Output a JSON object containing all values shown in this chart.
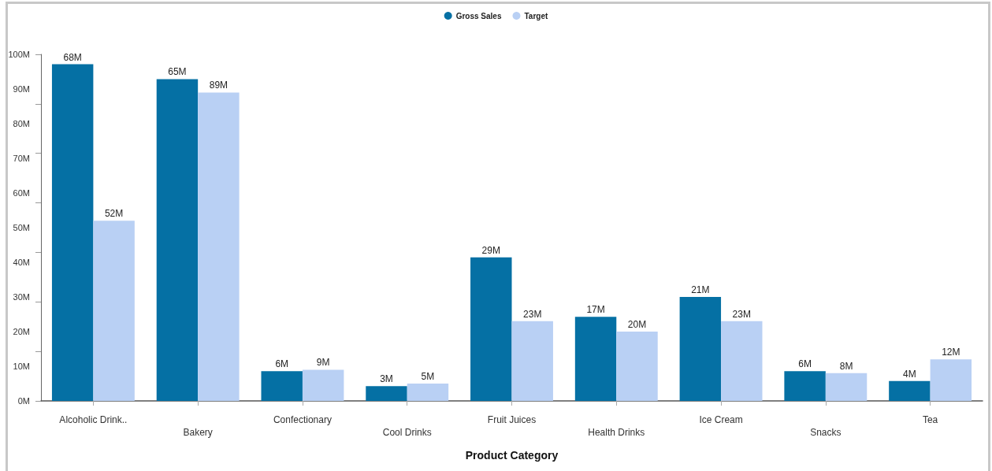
{
  "chart_data": {
    "type": "bar",
    "xlabel": "Product Category",
    "categories": [
      "Alcoholic Drink..",
      "Bakery",
      "Confectionary",
      "Cool Drinks",
      "Fruit Juices",
      "Health Drinks",
      "Ice Cream",
      "Snacks",
      "Tea"
    ],
    "series": [
      {
        "name": "Gross Sales",
        "color": "#0570a4",
        "axis": "y2",
        "values": [
          68,
          65,
          6,
          3,
          29,
          17,
          21,
          6,
          4
        ],
        "value_labels": [
          "68M",
          "65M",
          "6M",
          "3M",
          "29M",
          "17M",
          "21M",
          "6M",
          "4M"
        ]
      },
      {
        "name": "Target",
        "color": "#b9d0f4",
        "values": [
          52,
          89,
          9,
          5,
          23,
          20,
          23,
          8,
          12
        ],
        "value_labels": [
          "52M",
          "89M",
          "9M",
          "5M",
          "23M",
          "20M",
          "23M",
          "8M",
          "12M"
        ]
      }
    ],
    "ylim": [
      0,
      100
    ],
    "yticks": [
      {
        "value": 0,
        "label": "0M"
      },
      {
        "value": 10,
        "label": "10M"
      },
      {
        "value": 20,
        "label": "20M"
      },
      {
        "value": 30,
        "label": "30M"
      },
      {
        "value": 40,
        "label": "40M"
      },
      {
        "value": 50,
        "label": "50M"
      },
      {
        "value": 60,
        "label": "60M"
      },
      {
        "value": 70,
        "label": "70M"
      },
      {
        "value": 80,
        "label": "80M"
      },
      {
        "value": 90,
        "label": "90M"
      },
      {
        "value": 100,
        "label": "100M"
      }
    ],
    "y2lim": [
      0,
      70
    ],
    "y2ticks": [
      {
        "value": 0,
        "label": null
      },
      {
        "value": 10,
        "label": null
      },
      {
        "value": 20,
        "label": null
      },
      {
        "value": 30,
        "label": null
      },
      {
        "value": 40,
        "label": null
      },
      {
        "value": 50,
        "label": null
      },
      {
        "value": 60,
        "label": null
      },
      {
        "value": 70,
        "label": null
      }
    ],
    "legend": "top"
  }
}
